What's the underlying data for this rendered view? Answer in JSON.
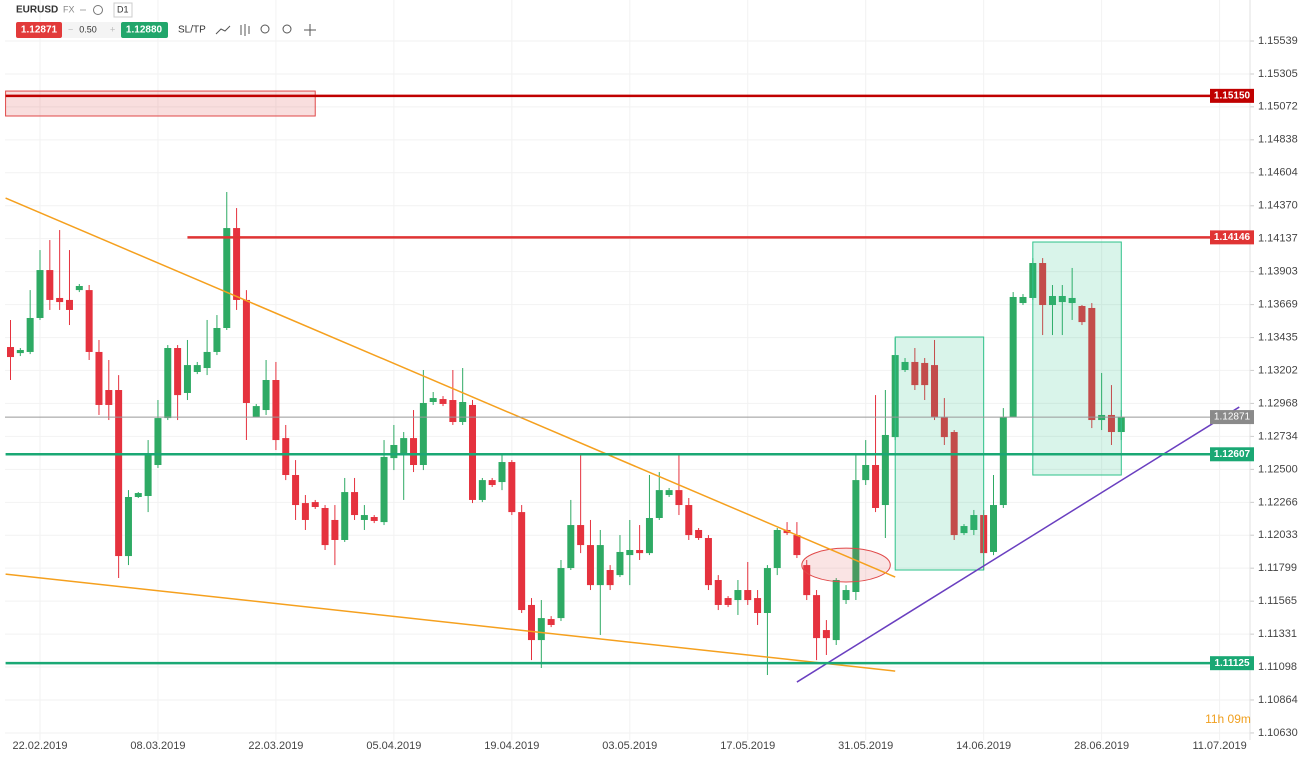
{
  "header": {
    "symbol": "EURUSD",
    "market": "FX",
    "timeframe": "D1",
    "sell": "1.12871",
    "lot": "0.50",
    "buy": "1.12880",
    "sltp": "SL/TP"
  },
  "chart_data": {
    "type": "candlestick",
    "categories": [
      null,
      null,
      null,
      "22.02.2019",
      null,
      null,
      null,
      null,
      null,
      null,
      null,
      null,
      null,
      null,
      null,
      "08.03.2019",
      null,
      null,
      null,
      null,
      null,
      null,
      null,
      null,
      null,
      null,
      null,
      "22.03.2019",
      null,
      null,
      null,
      null,
      null,
      null,
      null,
      null,
      null,
      null,
      null,
      "05.04.2019",
      null,
      null,
      null,
      null,
      null,
      null,
      null,
      null,
      null,
      null,
      null,
      "19.04.2019",
      null,
      null,
      null,
      null,
      null,
      null,
      null,
      null,
      null,
      null,
      null,
      "03.05.2019",
      null,
      null,
      null,
      null,
      null,
      null,
      null,
      null,
      null,
      null,
      null,
      "17.05.2019",
      null,
      null,
      null,
      null,
      null,
      null,
      null,
      null,
      null,
      null,
      null,
      "31.05.2019",
      null,
      null,
      null,
      null,
      null,
      null,
      null,
      null,
      null,
      null,
      null,
      "14.06.2019",
      null,
      null,
      null,
      null,
      null,
      null,
      null,
      null,
      null,
      null,
      null,
      "28.06.2019",
      null,
      null,
      null,
      null,
      null,
      null,
      null,
      null,
      null,
      null,
      null,
      "11.07.2019"
    ],
    "open": [
      1.13368,
      1.13325,
      1.13333,
      1.13574,
      1.13914,
      1.13716,
      1.13702,
      1.13772,
      1.13772,
      1.13333,
      1.13063,
      1.13063,
      1.11885,
      1.12304,
      1.12311,
      1.12531,
      1.12864,
      1.13361,
      1.13042,
      1.13191,
      1.13219,
      1.13333,
      1.13503,
      1.14212,
      1.13702,
      1.1287,
      1.12921,
      1.13134,
      1.12722,
      1.1246,
      1.12261,
      1.12268,
      1.12226,
      1.12141,
      1.11999,
      1.12339,
      1.12141,
      1.12162,
      1.12126,
      1.1258,
      1.12602,
      1.12722,
      1.12531,
      1.12978,
      1.12999,
      1.12992,
      1.12836,
      1.12957,
      1.12283,
      1.12424,
      1.1241,
      1.12552,
      1.12197,
      1.11538,
      1.11289,
      1.11438,
      1.11445,
      1.118,
      1.12105,
      1.11963,
      1.11679,
      1.11786,
      1.1175,
      1.11892,
      1.11928,
      1.11906,
      1.12155,
      1.12318,
      1.12353,
      1.12247,
      1.1207,
      1.12013,
      1.11715,
      1.11587,
      1.11573,
      1.11644,
      1.11587,
      1.11481,
      1.118,
      1.1207,
      1.12034,
      1.11821,
      1.11608,
      1.1136,
      1.11289,
      1.11573,
      1.1163,
      1.12424,
      1.12531,
      1.12247,
      1.12729,
      1.13205,
      1.13262,
      1.13255,
      1.1324,
      1.1287,
      1.12765,
      1.12048,
      1.1207,
      1.12176,
      1.11914,
      1.12247,
      1.1287,
      1.1368,
      1.13716,
      1.13964,
      1.13666,
      1.13687,
      1.1368,
      1.13659,
      1.13645,
      1.1285,
      1.12886,
      1.12765,
      null,
      null,
      null,
      null,
      null,
      null,
      null,
      null,
      null,
      null
    ],
    "high": [
      1.1356,
      1.13361,
      1.13772,
      1.14056,
      1.14127,
      1.14198,
      1.14056,
      1.13815,
      1.13808,
      1.13418,
      1.13276,
      1.13169,
      1.12353,
      1.12339,
      1.12708,
      1.12992,
      1.13382,
      1.13382,
      1.13418,
      1.13262,
      1.1356,
      1.13595,
      1.14468,
      1.14354,
      1.13772,
      1.12964,
      1.13276,
      1.13262,
      1.12815,
      1.12566,
      1.12318,
      1.12283,
      1.12247,
      1.12247,
      1.12439,
      1.12439,
      1.12247,
      1.12176,
      1.12708,
      1.12815,
      1.12765,
      1.12921,
      1.13205,
      1.13049,
      1.1302,
      1.13205,
      1.13219,
      1.12992,
      1.12439,
      1.12439,
      1.12602,
      1.12566,
      1.12247,
      1.11587,
      1.11573,
      1.11459,
      1.11857,
      1.12283,
      1.12602,
      1.12141,
      1.1207,
      1.11821,
      1.12034,
      1.12141,
      1.12105,
      1.1246,
      1.12481,
      1.12368,
      1.12602,
      1.12297,
      1.12084,
      1.12034,
      1.1175,
      1.11601,
      1.11715,
      1.11843,
      1.11644,
      1.11821,
      1.12084,
      1.12126,
      1.12126,
      1.11857,
      1.11644,
      1.11431,
      1.11729,
      1.11679,
      1.12602,
      1.12708,
      1.13027,
      1.13063,
      1.13432,
      1.1329,
      1.13361,
      1.1329,
      1.13418,
      1.13006,
      1.12779,
      1.12112,
      1.12212,
      1.12212,
      1.1246,
      1.12935,
      1.13758,
      1.13744,
      1.13999,
      1.13999,
      1.13808,
      1.13808,
      1.13929,
      1.13666,
      1.1368,
      1.13184,
      1.13098,
      1.12921,
      null,
      null,
      null,
      null,
      null,
      null,
      null,
      null,
      null,
      null
    ],
    "low": [
      1.13134,
      1.13304,
      1.13318,
      1.1356,
      1.13631,
      1.13631,
      1.13524,
      1.13758,
      1.13276,
      1.12886,
      1.1285,
      1.11729,
      1.11821,
      1.12297,
      1.12197,
      1.1251,
      1.1285,
      1.1285,
      1.12992,
      1.13176,
      1.13169,
      1.13311,
      1.13489,
      1.13631,
      1.12708,
      1.12886,
      1.12886,
      1.12637,
      1.12424,
      1.12141,
      1.1207,
      1.12219,
      1.11928,
      1.11821,
      1.11985,
      1.12141,
      1.1207,
      1.12119,
      1.12105,
      1.12495,
      1.12283,
      1.12481,
      1.12495,
      1.12957,
      1.12949,
      1.12815,
      1.12815,
      1.12261,
      1.12268,
      1.12375,
      1.12353,
      1.12176,
      1.11481,
      1.11147,
      1.11091,
      1.11381,
      1.11424,
      1.11786,
      1.11906,
      1.11644,
      1.11325,
      1.11644,
      1.11736,
      1.11679,
      1.11857,
      1.11892,
      1.12141,
      1.12304,
      1.12176,
      1.11999,
      1.11999,
      1.11644,
      1.11502,
      1.11523,
      1.11467,
      1.11538,
      1.11396,
      1.11041,
      1.1175,
      1.12034,
      1.11871,
      1.11573,
      1.11147,
      1.11183,
      1.11254,
      1.11545,
      1.11573,
      1.12389,
      1.12197,
      1.12013,
      1.12708,
      1.13191,
      1.13063,
      1.12992,
      1.1285,
      1.12673,
      1.11999,
      1.12034,
      1.12034,
      1.11786,
      1.11892,
      1.12226,
      1.12886,
      1.13666,
      1.13702,
      1.13453,
      1.13453,
      1.13453,
      1.1356,
      1.13524,
      1.12793,
      1.12779,
      1.12673,
      1.12708,
      null,
      null,
      null,
      null,
      null,
      null,
      null,
      null,
      null,
      null
    ],
    "close": [
      1.13297,
      1.13347,
      1.13574,
      1.13914,
      1.13702,
      1.13687,
      1.13631,
      1.13801,
      1.13333,
      1.12957,
      1.12957,
      1.11885,
      1.12304,
      1.12332,
      1.12602,
      1.12864,
      1.13361,
      1.13027,
      1.1324,
      1.1324,
      1.13333,
      1.13503,
      1.14212,
      1.13702,
      1.12971,
      1.12949,
      1.13134,
      1.12708,
      1.1246,
      1.12247,
      1.12141,
      1.12233,
      1.11963,
      1.11999,
      1.12339,
      1.12176,
      1.12176,
      1.12134,
      1.12588,
      1.12673,
      1.12722,
      1.12531,
      1.12971,
      1.13006,
      1.12964,
      1.12836,
      1.12978,
      1.12283,
      1.12424,
      1.12389,
      1.12552,
      1.12197,
      1.11502,
      1.11289,
      1.11445,
      1.11396,
      1.118,
      1.12105,
      1.11963,
      1.11679,
      1.11963,
      1.11679,
      1.11914,
      1.11928,
      1.11906,
      1.12155,
      1.12353,
      1.12353,
      1.12247,
      1.12034,
      1.12013,
      1.11679,
      1.11538,
      1.11538,
      1.11644,
      1.11573,
      1.11481,
      1.118,
      1.1207,
      1.12048,
      1.11892,
      1.11608,
      1.11303,
      1.11303,
      1.11715,
      1.11644,
      1.12424,
      1.12531,
      1.12226,
      1.12744,
      1.13311,
      1.13262,
      1.13098,
      1.13098,
      1.1287,
      1.12729,
      1.12034,
      1.12098,
      1.12176,
      1.11906,
      1.12247,
      1.1287,
      1.13723,
      1.13723,
      1.13964,
      1.13666,
      1.1373,
      1.1373,
      1.13716,
      1.13545,
      1.1285,
      1.12886,
      1.12765,
      1.12871,
      null,
      null,
      null,
      null,
      null,
      null,
      null,
      null,
      null,
      null
    ],
    "up_color": "#2eaa64",
    "down_color": "#e5323e",
    "ylim": [
      1.1058,
      1.1583
    ],
    "yticks": [
      1.15539,
      1.15305,
      1.15072,
      1.14838,
      1.14604,
      {
        "value": 1.1437,
        "label": "1.14370"
      },
      1.14137,
      1.13903,
      1.13669,
      1.13435,
      1.13202,
      1.12968,
      1.12734,
      {
        "value": 1.125,
        "label": "1.12500"
      },
      1.12266,
      1.12033,
      1.11799,
      1.11565,
      1.11331,
      1.11098,
      1.10864,
      {
        "value": 1.1063,
        "label": "1.10630"
      }
    ],
    "grid": true,
    "current_price": 1.12871,
    "levels": [
      {
        "value": 1.1515,
        "label": "1.15150",
        "color": "#c00000",
        "from": -0.5
      },
      {
        "value": 1.14146,
        "label": "1.14146",
        "color": "#e03434",
        "from": 18
      },
      {
        "value": 1.12607,
        "label": "1.12607",
        "color": "#1aa874",
        "from": -0.5
      },
      {
        "value": 1.11125,
        "label": "1.11125",
        "color": "#1aa874",
        "from": -0.5
      }
    ],
    "zones": [
      {
        "x": [
          -0.5,
          31
        ],
        "y": [
          1.15184,
          1.15007
        ],
        "color": "#e04848"
      },
      {
        "x": [
          90,
          99
        ],
        "y": [
          1.13439,
          1.11786
        ],
        "color": "#2ec28a"
      },
      {
        "x": [
          104,
          113
        ],
        "y": [
          1.14113,
          1.1246
        ],
        "color": "#2ec28a"
      }
    ],
    "trend_lines": [
      {
        "color": "#f5a01e",
        "points": [
          [
            -0.5,
            1.14425
          ],
          [
            90,
            1.11736
          ]
        ]
      },
      {
        "color": "#f5a01e",
        "points": [
          [
            -0.5,
            1.11757
          ],
          [
            90,
            1.11069
          ]
        ]
      },
      {
        "color": "#6a3fc0",
        "points": [
          [
            80,
            1.10991
          ],
          [
            125,
            1.12942
          ]
        ]
      }
    ],
    "ellipses": [
      {
        "x": 85,
        "y": 1.11821,
        "rx": 4.5,
        "ry": 0.0012,
        "color": "#e04848"
      }
    ],
    "countdown": "11h 09m"
  }
}
